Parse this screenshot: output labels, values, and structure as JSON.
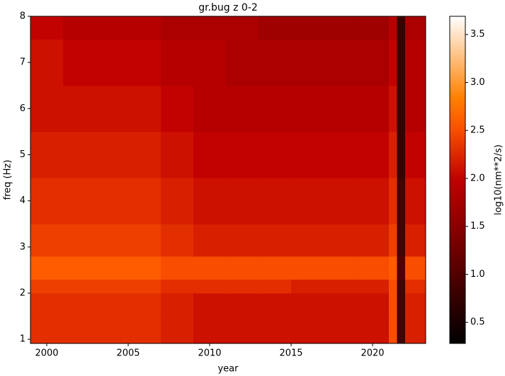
{
  "chart_data": {
    "type": "heatmap",
    "title": "gr.bug z 0-2",
    "x_label": "year",
    "y_label": "freq (Hz)",
    "colorbar_label": "log10(nm**2/s)",
    "colormap": "gist_heat",
    "x_bins": [
      1999,
      2001,
      2003,
      2005,
      2007,
      2009,
      2011,
      2013,
      2015,
      2017,
      2019,
      2021,
      2021.5,
      2022,
      2023.26
    ],
    "y_bins": [
      0.91,
      1.5,
      2,
      2.3,
      2.8,
      3.5,
      4.5,
      5.5,
      6.5,
      7.5,
      8
    ],
    "z": [
      [
        2.3,
        2.3,
        2.3,
        2.3,
        2.2,
        2.1,
        2.1,
        2.1,
        2.1,
        2.1,
        2.1,
        2.5,
        0.9,
        2.2
      ],
      [
        2.3,
        2.3,
        2.3,
        2.3,
        2.2,
        2.1,
        2.1,
        2.1,
        2.1,
        2.1,
        2.1,
        2.5,
        0.9,
        2.2
      ],
      [
        2.4,
        2.4,
        2.4,
        2.4,
        2.3,
        2.3,
        2.3,
        2.3,
        2.2,
        2.2,
        2.2,
        2.5,
        0.9,
        2.3
      ],
      [
        2.6,
        2.6,
        2.6,
        2.6,
        2.5,
        2.5,
        2.5,
        2.5,
        2.5,
        2.5,
        2.5,
        2.6,
        1.0,
        2.5
      ],
      [
        2.4,
        2.4,
        2.4,
        2.4,
        2.3,
        2.2,
        2.2,
        2.2,
        2.2,
        2.2,
        2.2,
        2.4,
        0.9,
        2.2
      ],
      [
        2.3,
        2.3,
        2.3,
        2.3,
        2.2,
        2.1,
        2.1,
        2.1,
        2.1,
        2.1,
        2.1,
        2.3,
        0.9,
        2.1
      ],
      [
        2.2,
        2.2,
        2.2,
        2.2,
        2.1,
        2.0,
        2.0,
        2.0,
        2.0,
        2.0,
        2.0,
        2.2,
        0.8,
        2.0
      ],
      [
        2.1,
        2.1,
        2.1,
        2.1,
        2.0,
        1.9,
        1.9,
        1.9,
        1.9,
        1.9,
        1.9,
        2.1,
        0.8,
        1.9
      ],
      [
        2.1,
        2.0,
        2.0,
        2.0,
        1.9,
        1.9,
        1.8,
        1.8,
        1.8,
        1.8,
        1.8,
        2.0,
        0.8,
        1.9
      ],
      [
        2.0,
        1.9,
        1.9,
        1.9,
        1.8,
        1.8,
        1.8,
        1.7,
        1.7,
        1.7,
        1.7,
        1.9,
        0.8,
        1.8
      ]
    ],
    "xlim": [
      1999,
      2023.26
    ],
    "ylim": [
      0.91,
      8
    ],
    "clim": [
      0.28,
      3.69
    ],
    "xticks": [
      2000,
      2005,
      2010,
      2015,
      2020
    ],
    "yticks": [
      1,
      2,
      3,
      4,
      5,
      6,
      7,
      8
    ],
    "cticks": [
      0.5,
      {
        "value": 1,
        "label": "1.0"
      },
      1.5,
      {
        "value": 2,
        "label": "2.0"
      },
      2.5,
      {
        "value": 3,
        "label": "3.0"
      },
      3.5
    ]
  }
}
